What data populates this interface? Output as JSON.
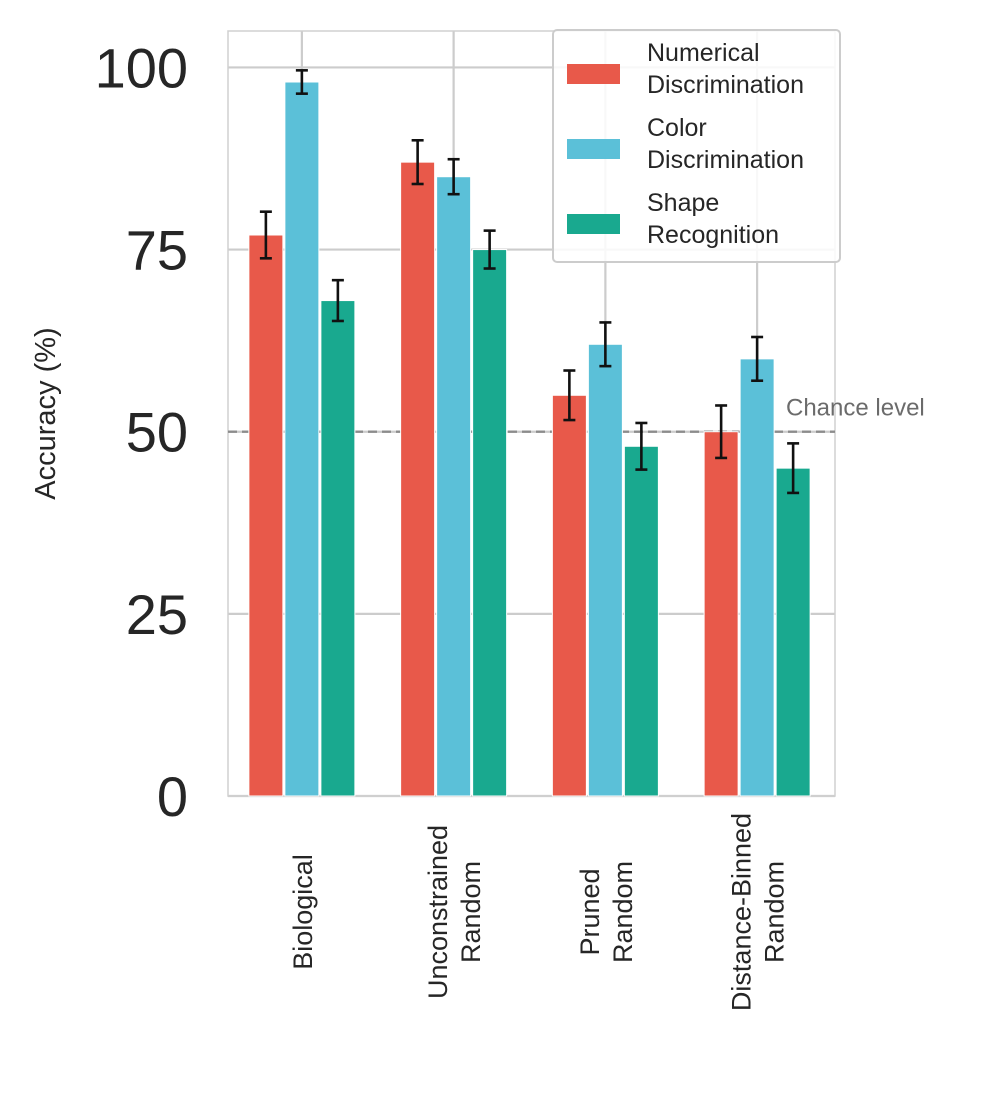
{
  "chart_data": {
    "type": "bar",
    "categories": [
      [
        "Biological"
      ],
      [
        "Unconstrained",
        "Random"
      ],
      [
        "Pruned",
        "Random"
      ],
      [
        "Distance-Binned",
        "Random"
      ]
    ],
    "series": [
      {
        "name": [
          "Numerical",
          "Discrimination"
        ],
        "color": "#e8594a",
        "values": [
          77,
          87,
          55,
          50
        ],
        "errors": [
          3.2,
          3.0,
          3.4,
          3.6
        ]
      },
      {
        "name": [
          "Color",
          "Discrimination"
        ],
        "color": "#5bc0d8",
        "values": [
          98,
          85,
          62,
          60
        ],
        "errors": [
          1.6,
          2.4,
          3.0,
          3.0
        ]
      },
      {
        "name": [
          "Shape",
          "Recognition"
        ],
        "color": "#19a98f",
        "values": [
          68,
          75,
          48,
          45
        ],
        "errors": [
          2.8,
          2.6,
          3.2,
          3.4
        ]
      }
    ],
    "ylabel": "Accuracy (%)",
    "xlabel": "",
    "ylim": [
      0,
      105
    ],
    "yticks": [
      0,
      25,
      50,
      75,
      100
    ],
    "grid": true,
    "legend_position": "top-right",
    "reference_line": {
      "value": 50,
      "label": "Chance level",
      "color": "#8c8c8c"
    }
  }
}
